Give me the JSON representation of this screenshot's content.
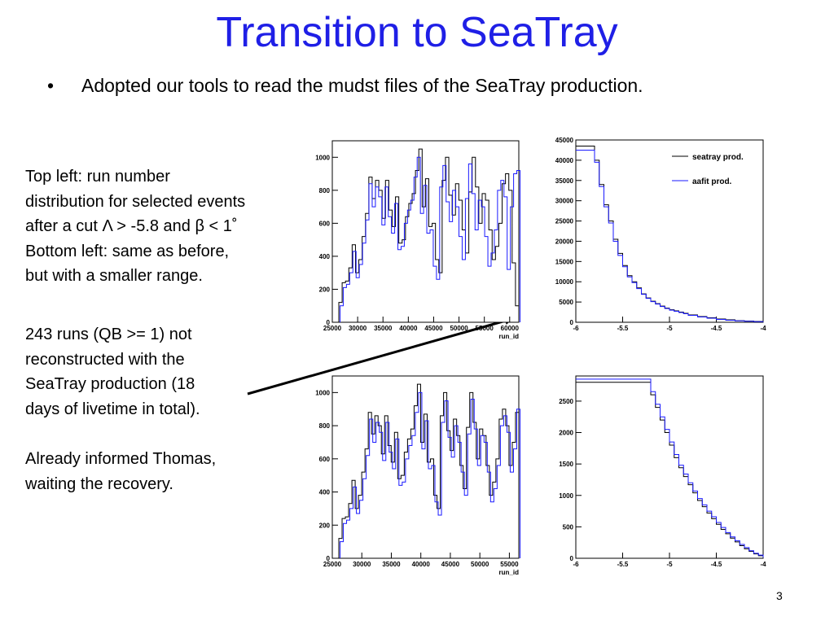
{
  "title": "Transition to SeaTray",
  "bullet": {
    "symbol": "•",
    "text": "Adopted our tools to read the mudst files of the SeaTray production."
  },
  "side_text": {
    "para1": [
      "Top left: run number",
      "distribution for selected events",
      "after a cut Λ > -5.8 and β < 1˚",
      "Bottom left: same as before,",
      "but with a smaller range."
    ],
    "para2": [
      "243 runs (QB >= 1) not",
      "reconstructed with the",
      "SeaTray production (18",
      "days of livetime in total)."
    ],
    "para3": [
      "Already informed Thomas,",
      "waiting the recovery."
    ]
  },
  "page_number": "3",
  "colors": {
    "title": "#1f1fe6",
    "seatray": "#000000",
    "aafit": "#1a1aff"
  },
  "chart_data": [
    {
      "type": "line",
      "panel": "top-left",
      "xlabel": "run_id",
      "ylabel": "",
      "xlim": [
        25000,
        61800
      ],
      "ylim": [
        0,
        1100
      ],
      "xticks": [
        25000,
        30000,
        35000,
        40000,
        45000,
        50000,
        55000,
        60000
      ],
      "xtick_labels": [
        "25000",
        "30000",
        "35000",
        "40000",
        "45000",
        "50000",
        "55000",
        "60000"
      ],
      "yticks": [
        0,
        200,
        400,
        600,
        800,
        1000
      ],
      "ytick_labels": [
        "0",
        "200",
        "400",
        "600",
        "800",
        "1000"
      ],
      "series": [
        {
          "name": "seatray prod.",
          "color": "#000000",
          "values": [
            120,
            240,
            250,
            330,
            470,
            300,
            380,
            520,
            660,
            880,
            750,
            860,
            800,
            630,
            860,
            680,
            580,
            760,
            480,
            500,
            640,
            720,
            780,
            920,
            1050,
            700,
            870,
            580,
            600,
            380,
            300,
            860,
            1000,
            770,
            650,
            840,
            740,
            560,
            420,
            790,
            1000,
            820,
            600,
            780,
            740,
            560,
            380,
            460,
            600,
            840,
            900,
            800,
            360,
            100
          ]
        },
        {
          "name": "aafit prod.",
          "color": "#1a1aff",
          "values": [
            100,
            210,
            230,
            300,
            430,
            270,
            350,
            480,
            620,
            840,
            700,
            820,
            760,
            590,
            820,
            640,
            540,
            720,
            440,
            460,
            600,
            680,
            740,
            880,
            1000,
            660,
            830,
            540,
            560,
            340,
            260,
            820,
            950,
            730,
            610,
            800,
            700,
            520,
            380,
            750,
            960,
            780,
            560,
            740,
            700,
            520,
            340,
            420,
            560,
            800,
            860,
            760,
            320,
            700,
            900,
            920
          ]
        }
      ]
    },
    {
      "type": "line",
      "panel": "top-right",
      "legend": [
        "seatray prod.",
        "aafit prod."
      ],
      "legend_position": "top-right",
      "xlim": [
        -6,
        -4
      ],
      "ylim": [
        0,
        45000
      ],
      "xticks": [
        -6,
        -5.5,
        -5,
        -4.5,
        -4
      ],
      "xtick_labels": [
        "-6",
        "-5.5",
        "-5",
        "-4.5",
        "-4"
      ],
      "yticks": [
        0,
        5000,
        10000,
        15000,
        20000,
        25000,
        30000,
        35000,
        40000,
        45000
      ],
      "ytick_labels": [
        "0",
        "5000",
        "10000",
        "15000",
        "20000",
        "25000",
        "30000",
        "35000",
        "40000",
        "45000"
      ],
      "series": [
        {
          "name": "seatray prod.",
          "color": "#000000",
          "x": [
            -6,
            -5.8,
            -5.75,
            -5.7,
            -5.65,
            -5.6,
            -5.55,
            -5.5,
            -5.45,
            -5.4,
            -5.35,
            -5.3,
            -5.25,
            -5.2,
            -5.15,
            -5.1,
            -5.05,
            -5,
            -4.95,
            -4.9,
            -4.85,
            -4.8,
            -4.7,
            -4.6,
            -4.5,
            -4.4,
            -4.3,
            -4.2,
            -4.1,
            -4
          ],
          "values": [
            43500,
            40000,
            34000,
            29000,
            25000,
            20500,
            17000,
            14000,
            11500,
            10000,
            8500,
            7000,
            6000,
            5200,
            4600,
            4000,
            3500,
            3100,
            2800,
            2500,
            2200,
            1800,
            1400,
            1100,
            800,
            600,
            400,
            300,
            200,
            100
          ]
        },
        {
          "name": "aafit prod.",
          "color": "#1a1aff",
          "x": [
            -6,
            -5.8,
            -5.75,
            -5.7,
            -5.65,
            -5.6,
            -5.55,
            -5.5,
            -5.45,
            -5.4,
            -5.35,
            -5.3,
            -5.25,
            -5.2,
            -5.15,
            -5.1,
            -5.05,
            -5,
            -4.95,
            -4.9,
            -4.85,
            -4.8,
            -4.7,
            -4.6,
            -4.5,
            -4.4,
            -4.3,
            -4.2,
            -4.1,
            -4
          ],
          "values": [
            42500,
            39500,
            33500,
            28500,
            24500,
            20000,
            16500,
            13700,
            11200,
            9800,
            8300,
            6900,
            5900,
            5100,
            4500,
            3900,
            3400,
            3000,
            2700,
            2400,
            2100,
            1700,
            1300,
            1000,
            700,
            500,
            350,
            250,
            150,
            80
          ]
        }
      ]
    },
    {
      "type": "line",
      "panel": "bottom-left",
      "xlabel": "run_id",
      "xlim": [
        25000,
        56600
      ],
      "ylim": [
        0,
        1100
      ],
      "xticks": [
        25000,
        30000,
        35000,
        40000,
        45000,
        50000,
        55000
      ],
      "xtick_labels": [
        "25000",
        "30000",
        "35000",
        "40000",
        "45000",
        "50000",
        "55000"
      ],
      "yticks": [
        0,
        200,
        400,
        600,
        800,
        1000
      ],
      "ytick_labels": [
        "0",
        "200",
        "400",
        "600",
        "800",
        "1000"
      ],
      "series": [
        {
          "name": "seatray prod.",
          "color": "#000000",
          "values": [
            120,
            240,
            250,
            330,
            470,
            300,
            380,
            520,
            660,
            880,
            750,
            860,
            800,
            630,
            860,
            680,
            580,
            760,
            480,
            500,
            640,
            720,
            780,
            920,
            1050,
            700,
            870,
            580,
            600,
            380,
            300,
            860,
            1000,
            770,
            650,
            840,
            740,
            560,
            420,
            790,
            1000,
            820,
            600,
            780,
            740,
            560,
            380,
            460,
            600,
            840,
            900,
            800,
            560,
            700,
            880
          ]
        },
        {
          "name": "aafit prod.",
          "color": "#1a1aff",
          "values": [
            100,
            210,
            230,
            300,
            430,
            270,
            350,
            480,
            620,
            840,
            700,
            820,
            760,
            590,
            820,
            640,
            540,
            720,
            440,
            460,
            600,
            680,
            740,
            880,
            1000,
            660,
            830,
            540,
            560,
            340,
            260,
            820,
            950,
            730,
            610,
            800,
            700,
            520,
            380,
            750,
            960,
            780,
            560,
            740,
            700,
            520,
            340,
            420,
            560,
            800,
            860,
            760,
            520,
            660,
            900
          ]
        }
      ]
    },
    {
      "type": "line",
      "panel": "bottom-right",
      "xlim": [
        -6,
        -4
      ],
      "ylim": [
        0,
        2900
      ],
      "xticks": [
        -6,
        -5.5,
        -5,
        -4.5,
        -4
      ],
      "xtick_labels": [
        "-6",
        "-5.5",
        "-5",
        "-4.5",
        "-4"
      ],
      "yticks": [
        0,
        500,
        1000,
        1500,
        2000,
        2500
      ],
      "ytick_labels": [
        "0",
        "500",
        "1000",
        "1500",
        "2000",
        "2500"
      ],
      "series": [
        {
          "name": "seatray prod.",
          "color": "#000000",
          "x": [
            -6,
            -5.2,
            -5.15,
            -5.1,
            -5.05,
            -5,
            -4.95,
            -4.9,
            -4.85,
            -4.8,
            -4.75,
            -4.7,
            -4.65,
            -4.6,
            -4.55,
            -4.5,
            -4.45,
            -4.4,
            -4.35,
            -4.3,
            -4.25,
            -4.2,
            -4.15,
            -4.1,
            -4.05,
            -4
          ],
          "values": [
            2800,
            2600,
            2400,
            2200,
            2000,
            1800,
            1600,
            1440,
            1300,
            1170,
            1040,
            920,
            820,
            720,
            630,
            540,
            460,
            390,
            320,
            260,
            200,
            150,
            110,
            70,
            40,
            10
          ]
        },
        {
          "name": "aafit prod.",
          "color": "#1a1aff",
          "x": [
            -6,
            -5.2,
            -5.15,
            -5.1,
            -5.05,
            -5,
            -4.95,
            -4.9,
            -4.85,
            -4.8,
            -4.75,
            -4.7,
            -4.65,
            -4.6,
            -4.55,
            -4.5,
            -4.45,
            -4.4,
            -4.35,
            -4.3,
            -4.25,
            -4.2,
            -4.15,
            -4.1,
            -4.05,
            -4
          ],
          "values": [
            2850,
            2650,
            2450,
            2250,
            2050,
            1850,
            1650,
            1480,
            1340,
            1200,
            1070,
            950,
            850,
            750,
            660,
            570,
            490,
            410,
            340,
            280,
            220,
            170,
            120,
            80,
            50,
            15
          ]
        }
      ]
    }
  ]
}
